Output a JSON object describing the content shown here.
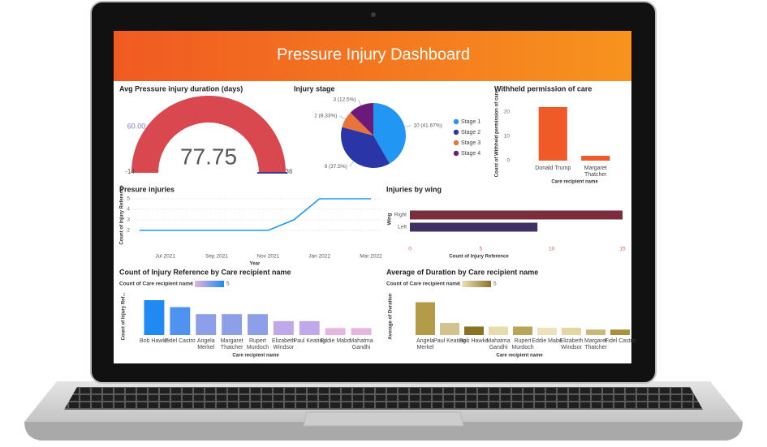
{
  "title": "Pressure Injury Dashboard",
  "chart_data": [
    {
      "type": "gauge",
      "title": "Avg Pressure injury duration (days)",
      "value": 77.75,
      "min": -14,
      "max": 36,
      "target": 60,
      "target_label": "60.00",
      "color": "#d9474f",
      "track_color": "#e9e9e9"
    },
    {
      "type": "pie",
      "title": "Injury stage",
      "categories": [
        "Stage 1",
        "Stage 2",
        "Stage 3",
        "Stage 4"
      ],
      "values": [
        10,
        9,
        2,
        3
      ],
      "value_labels": [
        "10 (41.67%)",
        "9 (37.5%)",
        "2 (8.33%)",
        "3 (12.5%)"
      ],
      "colors": [
        "#2196f3",
        "#2b36a6",
        "#e8743b",
        "#6a1b7a"
      ],
      "legend": "right"
    },
    {
      "type": "bar",
      "title": "Withheld permission of care",
      "categories": [
        "Donald Trump",
        "Margaret Thatcher"
      ],
      "values": [
        22,
        2
      ],
      "color": "#f05a28",
      "ylim": [
        0,
        22
      ],
      "yticks": [
        0,
        10,
        20
      ],
      "xlabel": "Care recipient name",
      "ylabel": "Count of Withheld permission of care"
    },
    {
      "type": "line",
      "title": "Presure injuries",
      "categories": [
        null,
        "Jul 2021",
        null,
        "Sep 2021",
        null,
        "Nov 2021",
        null,
        "Jan 2022",
        null,
        "Mar 2022"
      ],
      "values": [
        2,
        2,
        2,
        2,
        2,
        2,
        3,
        5,
        5,
        5
      ],
      "color": "#2196f3",
      "ylim": [
        2,
        5
      ],
      "yticks": [
        2,
        3,
        4,
        5
      ],
      "grid": true,
      "xlabel": "Year",
      "ylabel": "Count of Injury Reference"
    },
    {
      "type": "hbar",
      "title": "Injuries by wing",
      "categories": [
        "Right",
        "Left"
      ],
      "values": [
        15,
        9
      ],
      "colors": [
        "#7b2d3b",
        "#3f3163"
      ],
      "xlim": [
        0,
        15
      ],
      "xticks": [
        0,
        5,
        10,
        15
      ],
      "xlabel": "Count of Injury Reference",
      "ylabel": "Wing"
    },
    {
      "type": "bar",
      "title": "Count of Injury Reference by Care recipient name",
      "categories": [
        "Bob Hawke",
        "Fidel Castro",
        "Angela Merkel",
        "Margaret Thatcher",
        "Rupert Murdoch",
        "Elizabeth Windsor",
        "Paul Keating",
        "Eddie Mabo",
        "Mahatma Gandhi"
      ],
      "values": [
        5,
        4,
        3,
        3,
        3,
        2,
        2,
        1,
        1
      ],
      "colors": [
        "#1f8af0",
        "#4f93f0",
        "#8c9fe8",
        "#8c9fe8",
        "#8c9fe8",
        "#c0a9e8",
        "#c0a9e8",
        "#e7b4dc",
        "#e7b4dc"
      ],
      "ylim": [
        0,
        5
      ],
      "xlabel": "Care recipient name",
      "ylabel": "Count of Injury Ref...",
      "color_scale": {
        "title": "Count of Care recipient name",
        "min": 1,
        "max": 5,
        "colors": [
          "#e7b4dc",
          "#1f8af0"
        ]
      }
    },
    {
      "type": "bar",
      "title": "Average of Duration by Care recipient name",
      "categories": [
        "Angela Merkel",
        "Paul Keating",
        "Bob Hawke",
        "Mahatma Gandhi",
        "Rupert Murdoch",
        "Eddie Mabo",
        "Elizabeth Windsor",
        "Margaret Thatcher",
        "Fidel Castro"
      ],
      "values": [
        270,
        100,
        70,
        70,
        70,
        60,
        60,
        45,
        45
      ],
      "colors": [
        "#b39b4a",
        "#d2c38e",
        "#8a7325",
        "#e8dcae",
        "#b9a45c",
        "#ece3bd",
        "#e3d7a6",
        "#c9b878",
        "#a89040"
      ],
      "ylim": [
        0,
        300
      ],
      "xlabel": "Care recipient name",
      "ylabel": "Average of Duration",
      "color_scale": {
        "title": "Count of Care recipient name",
        "min": 1,
        "max": 5,
        "colors": [
          "#ece3bd",
          "#8a7325"
        ]
      }
    }
  ]
}
